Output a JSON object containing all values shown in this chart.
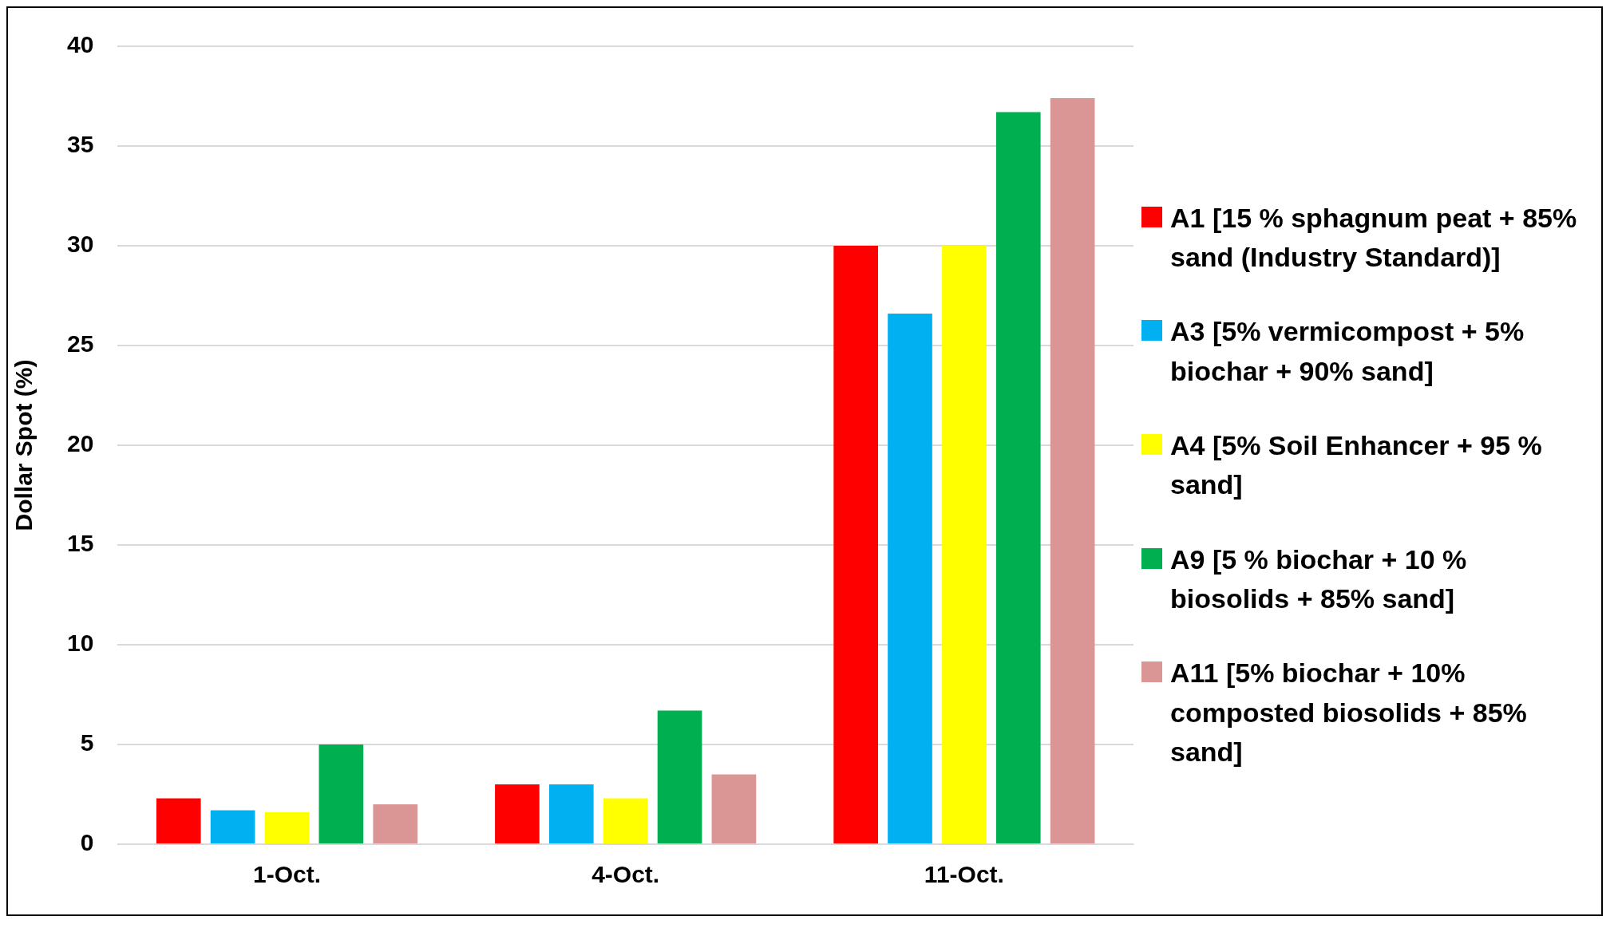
{
  "chart_data": {
    "type": "bar",
    "ylabel": "Dollar Spot (%)",
    "categories": [
      "1-Oct.",
      "4-Oct.",
      "11-Oct."
    ],
    "series": [
      {
        "name": "A1 [15 % sphagnum peat + 85% sand (Industry Standard)]",
        "color": "#ff0000",
        "values": [
          2.3,
          3.0,
          30.0
        ]
      },
      {
        "name": "A3 [5% vermicompost + 5% biochar + 90% sand]",
        "color": "#00b0f0",
        "values": [
          1.7,
          3.0,
          26.6
        ]
      },
      {
        "name": "A4 [5% Soil Enhancer + 95 % sand]",
        "color": "#ffff00",
        "values": [
          1.6,
          2.3,
          30.0
        ]
      },
      {
        "name": "A9 [5 % biochar + 10 % biosolids + 85% sand]",
        "color": "#00b050",
        "values": [
          5.0,
          6.7,
          36.7
        ]
      },
      {
        "name": "A11 [5% biochar + 10% composted biosolids + 85% sand]",
        "color": "#da9694",
        "values": [
          2.0,
          3.5,
          37.4
        ]
      }
    ],
    "ylim": [
      0,
      40
    ],
    "yticks": [
      0,
      5,
      10,
      15,
      20,
      25,
      30,
      35,
      40
    ],
    "grid": "y",
    "legend": "right"
  }
}
